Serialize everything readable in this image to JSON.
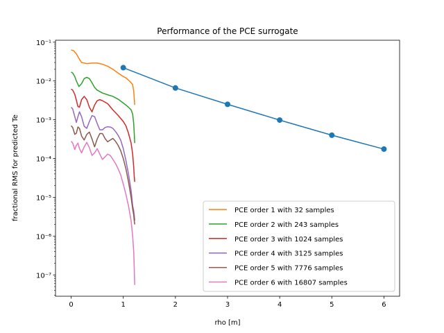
{
  "chart_data": {
    "type": "line",
    "title": "Performance of the PCE surrogate",
    "xlabel": "rho [m]",
    "ylabel": "fractional RMS for predicted Te",
    "xlim": [
      -0.3,
      6.3
    ],
    "ylim_log10": [
      -7.55,
      -0.95
    ],
    "yscale": "log",
    "x_ticks": [
      0,
      1,
      2,
      3,
      4,
      5,
      6
    ],
    "y_ticks": [
      {
        "exp": -7,
        "label": "10⁻⁷"
      },
      {
        "exp": -6,
        "label": "10⁻⁶"
      },
      {
        "exp": -5,
        "label": "10⁻⁵"
      },
      {
        "exp": -4,
        "label": "10⁻⁴"
      },
      {
        "exp": -3,
        "label": "10⁻³"
      },
      {
        "exp": -2,
        "label": "10⁻²"
      },
      {
        "exp": -1,
        "label": "10⁻¹"
      }
    ],
    "grid": false,
    "legend_position": "lower-right",
    "marker_series": {
      "color": "#1f77b4",
      "x": [
        1,
        2,
        3,
        4,
        5,
        6
      ],
      "y": [
        0.022,
        0.0066,
        0.0025,
        0.00098,
        0.0004,
        0.000175
      ]
    },
    "series": [
      {
        "name": "PCE order 1 with 32 samples",
        "color": "#ff7f0e",
        "x": [
          0,
          0.05,
          0.1,
          0.15,
          0.2,
          0.3,
          0.4,
          0.5,
          0.6,
          0.7,
          0.8,
          0.9,
          1.0,
          1.05,
          1.1,
          1.15,
          1.18,
          1.2,
          1.22
        ],
        "y": [
          0.063,
          0.06,
          0.05,
          0.038,
          0.03,
          0.028,
          0.029,
          0.029,
          0.027,
          0.024,
          0.02,
          0.016,
          0.013,
          0.012,
          0.0105,
          0.009,
          0.008,
          0.0055,
          0.0024
        ]
      },
      {
        "name": "PCE order 2 with 243 samples",
        "color": "#2ca02c",
        "x": [
          0,
          0.03,
          0.07,
          0.1,
          0.15,
          0.2,
          0.25,
          0.3,
          0.35,
          0.4,
          0.45,
          0.5,
          0.6,
          0.7,
          0.8,
          0.9,
          1.0,
          1.05,
          1.1,
          1.15,
          1.18,
          1.2,
          1.22
        ],
        "y": [
          0.017,
          0.016,
          0.013,
          0.01,
          0.0072,
          0.0085,
          0.0115,
          0.0124,
          0.0115,
          0.009,
          0.0068,
          0.0058,
          0.0049,
          0.0044,
          0.004,
          0.0034,
          0.0027,
          0.0024,
          0.0021,
          0.0018,
          0.0014,
          0.0008,
          0.00025
        ]
      },
      {
        "name": "PCE order 3 with 1024 samples",
        "color": "#d62728",
        "x": [
          0,
          0.03,
          0.07,
          0.1,
          0.13,
          0.16,
          0.2,
          0.25,
          0.3,
          0.35,
          0.4,
          0.45,
          0.5,
          0.55,
          0.6,
          0.7,
          0.8,
          0.9,
          1.0,
          1.05,
          1.1,
          1.15,
          1.18,
          1.2,
          1.21,
          1.22
        ],
        "y": [
          0.0062,
          0.0058,
          0.0045,
          0.0032,
          0.0022,
          0.0021,
          0.0033,
          0.004,
          0.0033,
          0.0021,
          0.0016,
          0.0024,
          0.0031,
          0.0033,
          0.0031,
          0.0026,
          0.0018,
          0.0013,
          0.0009,
          0.0007,
          0.00045,
          0.00025,
          0.00013,
          6e-05,
          3.5e-05,
          2.5e-05
        ]
      },
      {
        "name": "PCE order 4 with 3125 samples",
        "color": "#9467bd",
        "x": [
          0,
          0.03,
          0.07,
          0.1,
          0.13,
          0.16,
          0.2,
          0.25,
          0.3,
          0.35,
          0.4,
          0.45,
          0.5,
          0.55,
          0.6,
          0.65,
          0.7,
          0.75,
          0.8,
          0.85,
          0.9,
          0.95,
          1.0,
          1.05,
          1.1,
          1.15,
          1.18,
          1.2,
          1.21,
          1.22
        ],
        "y": [
          0.0021,
          0.0019,
          0.0012,
          0.00085,
          0.0012,
          0.0016,
          0.0012,
          0.00068,
          0.0006,
          0.0009,
          0.00128,
          0.0012,
          0.0008,
          0.00055,
          0.00055,
          0.00063,
          0.00066,
          0.00065,
          0.0006,
          0.0005,
          0.0004,
          0.0003,
          0.00018,
          9e-05,
          4e-05,
          1.5e-05,
          6e-06,
          4.5e-06,
          3.5e-06,
          2.5e-06
        ]
      },
      {
        "name": "PCE order 5 with 7776 samples",
        "color": "#8c564b",
        "x": [
          0,
          0.03,
          0.07,
          0.1,
          0.13,
          0.16,
          0.2,
          0.25,
          0.3,
          0.35,
          0.4,
          0.45,
          0.5,
          0.55,
          0.6,
          0.65,
          0.7,
          0.75,
          0.8,
          0.85,
          0.9,
          0.95,
          1.0,
          1.05,
          1.1,
          1.15,
          1.18,
          1.2,
          1.21,
          1.22
        ],
        "y": [
          0.0007,
          0.00063,
          0.00042,
          0.00045,
          0.00065,
          0.0006,
          0.00038,
          0.0003,
          0.00042,
          0.00048,
          0.00032,
          0.0002,
          0.00032,
          0.00044,
          0.00044,
          0.00033,
          0.00027,
          0.0003,
          0.00033,
          0.00028,
          0.00022,
          0.00016,
          0.0001,
          5.5e-05,
          2.5e-05,
          1e-05,
          5e-06,
          3.5e-06,
          2.5e-06,
          2e-06
        ]
      },
      {
        "name": "PCE order 6 with 16807 samples",
        "color": "#e377c2",
        "x": [
          0,
          0.03,
          0.07,
          0.1,
          0.13,
          0.16,
          0.2,
          0.25,
          0.3,
          0.35,
          0.4,
          0.45,
          0.5,
          0.55,
          0.6,
          0.65,
          0.7,
          0.75,
          0.8,
          0.85,
          0.9,
          0.95,
          1.0,
          1.05,
          1.1,
          1.15,
          1.18,
          1.2,
          1.21,
          1.22
        ],
        "y": [
          0.00028,
          0.00025,
          0.00017,
          0.00022,
          0.00025,
          0.00018,
          0.00014,
          0.0002,
          0.00026,
          0.00019,
          0.00012,
          0.00014,
          0.00018,
          0.00013,
          9.5e-05,
          0.00011,
          0.00013,
          0.00012,
          9.5e-05,
          7.5e-05,
          5.5e-05,
          3.8e-05,
          2.2e-05,
          1.2e-05,
          6e-06,
          2.5e-06,
          1e-06,
          4e-07,
          1.5e-07,
          5.5e-08
        ]
      }
    ]
  }
}
